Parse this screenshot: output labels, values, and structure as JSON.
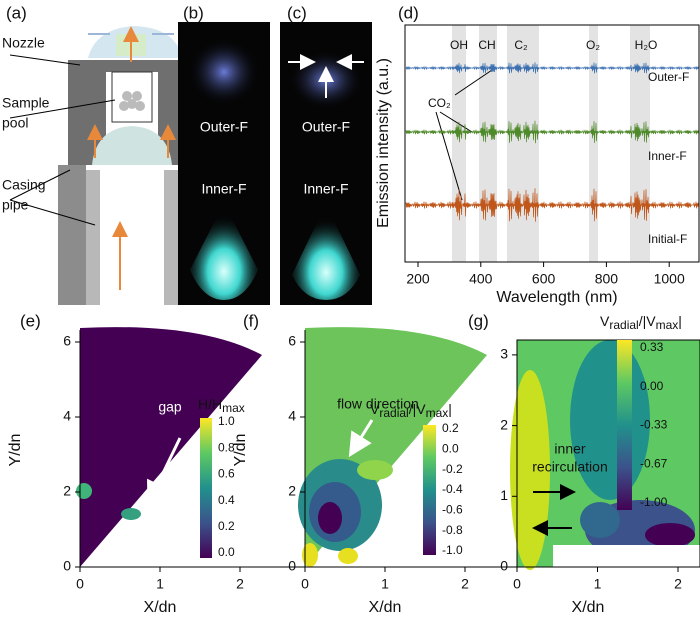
{
  "panel_a": {
    "label": "(a)",
    "nozzle": "Nozzle",
    "sample_pool": [
      "Sample",
      "pool"
    ],
    "casing_pipe": [
      "Casing",
      "pipe"
    ]
  },
  "panel_b": {
    "label": "(b)",
    "outer": "Outer-F",
    "inner": "Inner-F"
  },
  "panel_c": {
    "label": "(c)",
    "outer": "Outer-F",
    "inner": "Inner-F"
  },
  "panel_d": {
    "label": "(d)",
    "y_label": "Emission intensity (a.u.)",
    "x_label": "Wavelength (nm)",
    "xticks": [
      200,
      400,
      600,
      800,
      1000
    ],
    "bands": [
      "OH",
      "CH",
      "C₂",
      "O₂",
      "H₂O"
    ],
    "co2": "CO₂",
    "series": [
      "Outer-F",
      "Inner-F",
      "Initial-F"
    ]
  },
  "panel_e": {
    "label": "(e)",
    "y_label": "Y/dn",
    "x_label": "X/dn",
    "yticks": [
      0,
      2,
      4,
      6
    ],
    "xticks": [
      0,
      1,
      2
    ],
    "annotation": "gap",
    "colorbar": {
      "title_parts": [
        "H/H",
        "max"
      ],
      "ticks": [
        "1.0",
        "0.8",
        "0.6",
        "0.4",
        "0.2",
        "0.0"
      ]
    }
  },
  "panel_f": {
    "label": "(f)",
    "y_label": "Y/dn",
    "x_label": "X/dn",
    "yticks": [
      0,
      2,
      4,
      6
    ],
    "xticks": [
      0,
      1,
      2
    ],
    "annotation": "flow direction",
    "colorbar": {
      "title_parts": [
        "V",
        "radial",
        "/|V",
        "max",
        "|"
      ],
      "ticks": [
        "0.2",
        "0.0",
        "-0.2",
        "-0.4",
        "-0.6",
        "-0.8",
        "-1.0"
      ]
    }
  },
  "panel_g": {
    "label": "(g)",
    "x_label": "X/dn",
    "yticks": [
      0,
      1,
      2,
      3
    ],
    "xticks": [
      0,
      1,
      2
    ],
    "annotation": [
      "inner",
      "recirculation"
    ],
    "colorbar": {
      "title_parts": [
        "V",
        "radial",
        "/|V",
        "max",
        "|"
      ],
      "ticks": [
        "0.33",
        "0.00",
        "-0.33",
        "-0.67",
        "-1.00"
      ]
    }
  }
}
